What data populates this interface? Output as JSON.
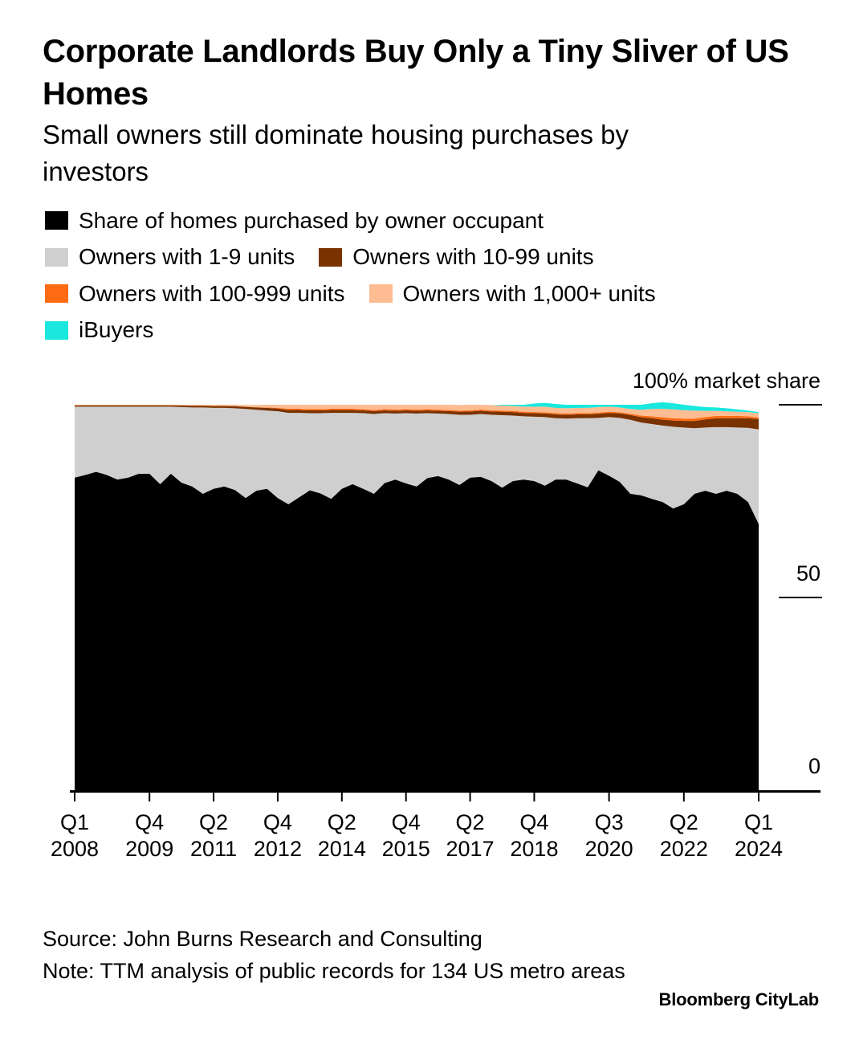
{
  "chart_data": {
    "type": "area",
    "stacked": true,
    "title": "Corporate Landlords Buy Only a Tiny Sliver of US Homes",
    "subtitle": "Small owners still dominate housing purchases by investors",
    "y_axis": {
      "ylim": [
        0,
        100
      ],
      "ticks": [
        {
          "value": 100,
          "label": "100% market share"
        },
        {
          "value": 50,
          "label": "50"
        },
        {
          "value": 0,
          "label": "0"
        }
      ]
    },
    "x_axis": {
      "start": "Q1 2008",
      "end": "Q1 2024",
      "ticks": [
        {
          "index": 0,
          "line1": "Q1",
          "line2": "2008"
        },
        {
          "index": 7,
          "line1": "Q4",
          "line2": "2009"
        },
        {
          "index": 13,
          "line1": "Q2",
          "line2": "2011"
        },
        {
          "index": 19,
          "line1": "Q4",
          "line2": "2012"
        },
        {
          "index": 25,
          "line1": "Q2",
          "line2": "2014"
        },
        {
          "index": 31,
          "line1": "Q4",
          "line2": "2015"
        },
        {
          "index": 37,
          "line1": "Q2",
          "line2": "2017"
        },
        {
          "index": 43,
          "line1": "Q4",
          "line2": "2018"
        },
        {
          "index": 50,
          "line1": "Q3",
          "line2": "2020"
        },
        {
          "index": 57,
          "line1": "Q2",
          "line2": "2022"
        },
        {
          "index": 64,
          "line1": "Q1",
          "line2": "2024"
        }
      ]
    },
    "series": [
      {
        "name": "Share of homes purchased by owner occupant",
        "color": "#000000",
        "values": [
          81.1,
          81.8,
          82.6,
          81.8,
          80.6,
          81.1,
          82.1,
          82.1,
          79.4,
          82.1,
          79.8,
          78.8,
          76.9,
          78.2,
          78.8,
          77.9,
          75.8,
          77.7,
          78.2,
          75.8,
          74.2,
          76.0,
          77.8,
          77.0,
          75.6,
          78.2,
          79.4,
          78.2,
          76.9,
          79.7,
          80.6,
          79.6,
          78.8,
          81.0,
          81.5,
          80.6,
          79.2,
          81.1,
          81.3,
          80.2,
          78.5,
          80.2,
          80.6,
          80.2,
          79.0,
          80.6,
          80.6,
          79.6,
          78.6,
          83.0,
          81.6,
          80.0,
          76.9,
          76.5,
          75.6,
          74.8,
          73.1,
          74.2,
          76.9,
          77.7,
          76.9,
          77.7,
          76.9,
          74.8,
          69.1
        ]
      },
      {
        "name": "Owners with 1-9 units",
        "color": "#cfcfcf",
        "values": [
          18.4,
          17.7,
          16.9,
          17.7,
          18.9,
          18.4,
          17.4,
          17.4,
          20.1,
          17.4,
          19.6,
          20.5,
          22.4,
          21.0,
          20.4,
          21.2,
          23.1,
          21.0,
          20.3,
          22.5,
          23.7,
          21.9,
          20.0,
          20.8,
          22.3,
          19.7,
          18.5,
          19.6,
          20.7,
          18.1,
          17.1,
          18.2,
          18.9,
          16.8,
          16.2,
          17.0,
          18.2,
          16.3,
          16.3,
          17.2,
          18.8,
          17.0,
          16.4,
          16.7,
          17.8,
          15.9,
          15.8,
          16.9,
          17.9,
          13.6,
          15.2,
          16.6,
          19.2,
          18.9,
          19.4,
          19.8,
          21.2,
          19.9,
          17.0,
          16.4,
          17.3,
          16.5,
          17.2,
          19.2,
          24.5
        ]
      },
      {
        "name": "Owners with 10-99 units",
        "color": "#7a3200",
        "values": [
          0.35,
          0.35,
          0.35,
          0.35,
          0.35,
          0.35,
          0.35,
          0.35,
          0.35,
          0.35,
          0.4,
          0.45,
          0.45,
          0.45,
          0.45,
          0.5,
          0.55,
          0.6,
          0.7,
          0.7,
          0.75,
          0.75,
          0.75,
          0.75,
          0.75,
          0.75,
          0.75,
          0.75,
          0.75,
          0.75,
          0.75,
          0.75,
          0.75,
          0.75,
          0.75,
          0.75,
          0.8,
          0.85,
          0.85,
          0.85,
          0.9,
          0.9,
          0.9,
          0.9,
          0.95,
          1.0,
          1.0,
          1.0,
          1.0,
          1.05,
          1.1,
          1.15,
          1.25,
          1.4,
          1.5,
          1.55,
          1.6,
          1.7,
          1.9,
          2.1,
          2.3,
          2.3,
          2.4,
          2.5,
          2.7
        ]
      },
      {
        "name": "Owners with 100-999 units",
        "color": "#ff6b12",
        "values": [
          0.05,
          0.05,
          0.05,
          0.05,
          0.05,
          0.05,
          0.05,
          0.05,
          0.05,
          0.05,
          0.05,
          0.05,
          0.05,
          0.05,
          0.05,
          0.05,
          0.05,
          0.05,
          0.1,
          0.2,
          0.3,
          0.3,
          0.3,
          0.3,
          0.3,
          0.3,
          0.3,
          0.3,
          0.3,
          0.3,
          0.3,
          0.3,
          0.3,
          0.3,
          0.3,
          0.3,
          0.3,
          0.3,
          0.3,
          0.3,
          0.3,
          0.3,
          0.3,
          0.3,
          0.3,
          0.3,
          0.3,
          0.3,
          0.3,
          0.3,
          0.3,
          0.3,
          0.3,
          0.4,
          0.5,
          0.6,
          0.6,
          0.6,
          0.6,
          0.6,
          0.6,
          0.6,
          0.6,
          0.5,
          0.4
        ]
      },
      {
        "name": "Owners with 1,000+ units",
        "color": "#fdbc92",
        "values": [
          0.1,
          0.1,
          0.1,
          0.1,
          0.1,
          0.1,
          0.1,
          0.1,
          0.1,
          0.1,
          0.15,
          0.2,
          0.2,
          0.3,
          0.3,
          0.35,
          0.45,
          0.6,
          0.7,
          0.8,
          1.05,
          1.05,
          1.15,
          1.15,
          1.05,
          1.05,
          1.05,
          1.15,
          1.35,
          1.15,
          1.25,
          1.15,
          1.25,
          1.15,
          1.25,
          1.35,
          1.45,
          1.45,
          1.25,
          1.35,
          1.3,
          1.3,
          1.3,
          1.4,
          1.45,
          1.4,
          1.4,
          1.4,
          1.4,
          1.45,
          1.3,
          1.25,
          1.25,
          1.5,
          1.9,
          2.2,
          2.3,
          2.2,
          2.1,
          1.6,
          1.3,
          1.2,
          1.1,
          1.1,
          1.1
        ]
      },
      {
        "name": "iBuyers",
        "color": "#1ae8de",
        "values": [
          0,
          0,
          0,
          0,
          0,
          0,
          0,
          0,
          0,
          0,
          0,
          0,
          0,
          0,
          0,
          0,
          0,
          0,
          0,
          0,
          0,
          0,
          0,
          0,
          0,
          0,
          0,
          0,
          0,
          0,
          0,
          0,
          0,
          0,
          0,
          0,
          0,
          0,
          0,
          0,
          0.2,
          0.3,
          0.5,
          0.8,
          1.0,
          1.0,
          0.9,
          0.8,
          0.8,
          0.6,
          0.5,
          0.7,
          1.1,
          1.3,
          1.5,
          1.7,
          1.6,
          1.4,
          1.2,
          1.0,
          0.9,
          0.8,
          0.6,
          0.4,
          0.3
        ]
      }
    ]
  },
  "footer": {
    "source": "Source: John Burns Research and Consulting",
    "note": "Note: TTM analysis of public records for 134 US metro areas",
    "brand": "Bloomberg CityLab"
  }
}
